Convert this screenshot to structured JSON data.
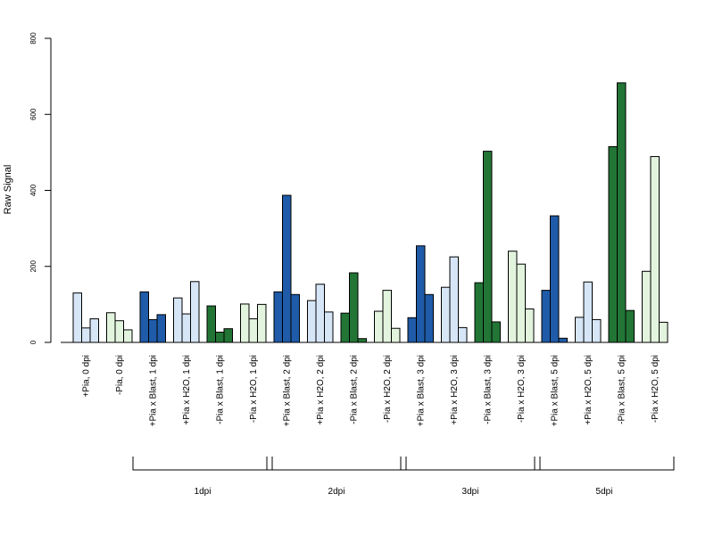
{
  "colors": {
    "pia_pos": "#d6e6f7",
    "pia_neg": "#e2f4dd",
    "blast_pos": "#1f5ba8",
    "h2o_pos": "#d6e6f7",
    "blast_neg": "#227535",
    "h2o_neg": "#e2f4dd"
  },
  "chart_data": {
    "type": "bar",
    "ylabel": "Raw Signal",
    "xlabel": "",
    "ylim": [
      0,
      800
    ],
    "yticks": [
      0,
      200,
      400,
      600,
      800
    ],
    "grid": false,
    "categories": [
      {
        "label": "+Pia, 0 dpi",
        "values": [
          130,
          38,
          62
        ],
        "color_key": "pia_pos"
      },
      {
        "label": "-Pia, 0 dpi",
        "values": [
          78,
          57,
          33
        ],
        "color_key": "pia_neg"
      },
      {
        "label": "+Pia x Blast, 1 dpi",
        "values": [
          133,
          60,
          73
        ],
        "color_key": "blast_pos"
      },
      {
        "label": "+Pia x H2O, 1 dpi",
        "values": [
          117,
          75,
          160
        ],
        "color_key": "h2o_pos"
      },
      {
        "label": "-Pia x Blast, 1 dpi",
        "values": [
          96,
          27,
          36
        ],
        "color_key": "blast_neg"
      },
      {
        "label": "-Pia x H2O, 1 dpi",
        "values": [
          101,
          62,
          100
        ],
        "color_key": "h2o_neg"
      },
      {
        "label": "+Pia x Blast, 2 dpi",
        "values": [
          133,
          387,
          126
        ],
        "color_key": "blast_pos"
      },
      {
        "label": "+Pia x H2O, 2 dpi",
        "values": [
          110,
          153,
          80
        ],
        "color_key": "h2o_pos"
      },
      {
        "label": "-Pia x Blast, 2 dpi",
        "values": [
          77,
          183,
          10
        ],
        "color_key": "blast_neg"
      },
      {
        "label": "-Pia x H2O, 2 dpi",
        "values": [
          82,
          137,
          37
        ],
        "color_key": "h2o_neg"
      },
      {
        "label": "+Pia x Blast, 3 dpi",
        "values": [
          65,
          254,
          126
        ],
        "color_key": "blast_pos"
      },
      {
        "label": "+Pia x H2O, 3 dpi",
        "values": [
          145,
          225,
          39
        ],
        "color_key": "h2o_pos"
      },
      {
        "label": "-Pia x Blast, 3 dpi",
        "values": [
          157,
          503,
          54
        ],
        "color_key": "blast_neg"
      },
      {
        "label": "-Pia x H2O, 3 dpi",
        "values": [
          240,
          206,
          88
        ],
        "color_key": "h2o_neg"
      },
      {
        "label": "+Pia x Blast, 5 dpi",
        "values": [
          137,
          333,
          11
        ],
        "color_key": "blast_pos"
      },
      {
        "label": "+Pia x H2O, 5 dpi",
        "values": [
          66,
          159,
          60
        ],
        "color_key": "h2o_pos"
      },
      {
        "label": "-Pia x Blast, 5 dpi",
        "values": [
          515,
          683,
          84
        ],
        "color_key": "blast_neg"
      },
      {
        "label": "-Pia x H2O, 5 dpi",
        "values": [
          187,
          489,
          53
        ],
        "color_key": "h2o_neg"
      }
    ],
    "groups": [
      {
        "label": "1dpi",
        "from": 2,
        "to": 5
      },
      {
        "label": "2dpi",
        "from": 6,
        "to": 9
      },
      {
        "label": "3dpi",
        "from": 10,
        "to": 13
      },
      {
        "label": "5dpi",
        "from": 14,
        "to": 17
      }
    ]
  }
}
